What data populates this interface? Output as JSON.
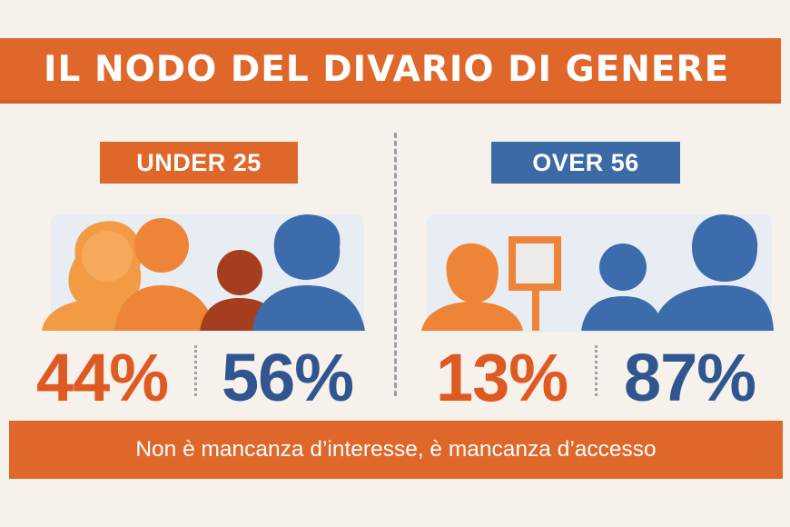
{
  "title": "IL NODO DEL DIVARIO DI GENERE",
  "groups": [
    {
      "label": "UNDER 25",
      "women_pct": "44%",
      "men_pct": "56%",
      "women_share": 0.44,
      "men_share": 0.56,
      "color": "#e0672a"
    },
    {
      "label": "OVER 56",
      "women_pct": "13%",
      "men_pct": "87%",
      "women_share": 0.13,
      "men_share": 0.87,
      "color": "#3c6aa6"
    }
  ],
  "footer": "Non è mancanza d’interesse, è mancanza d’accesso",
  "colors": {
    "orange": "#e0672a",
    "blue": "#3c6aa6",
    "background": "#f6f1eb"
  }
}
